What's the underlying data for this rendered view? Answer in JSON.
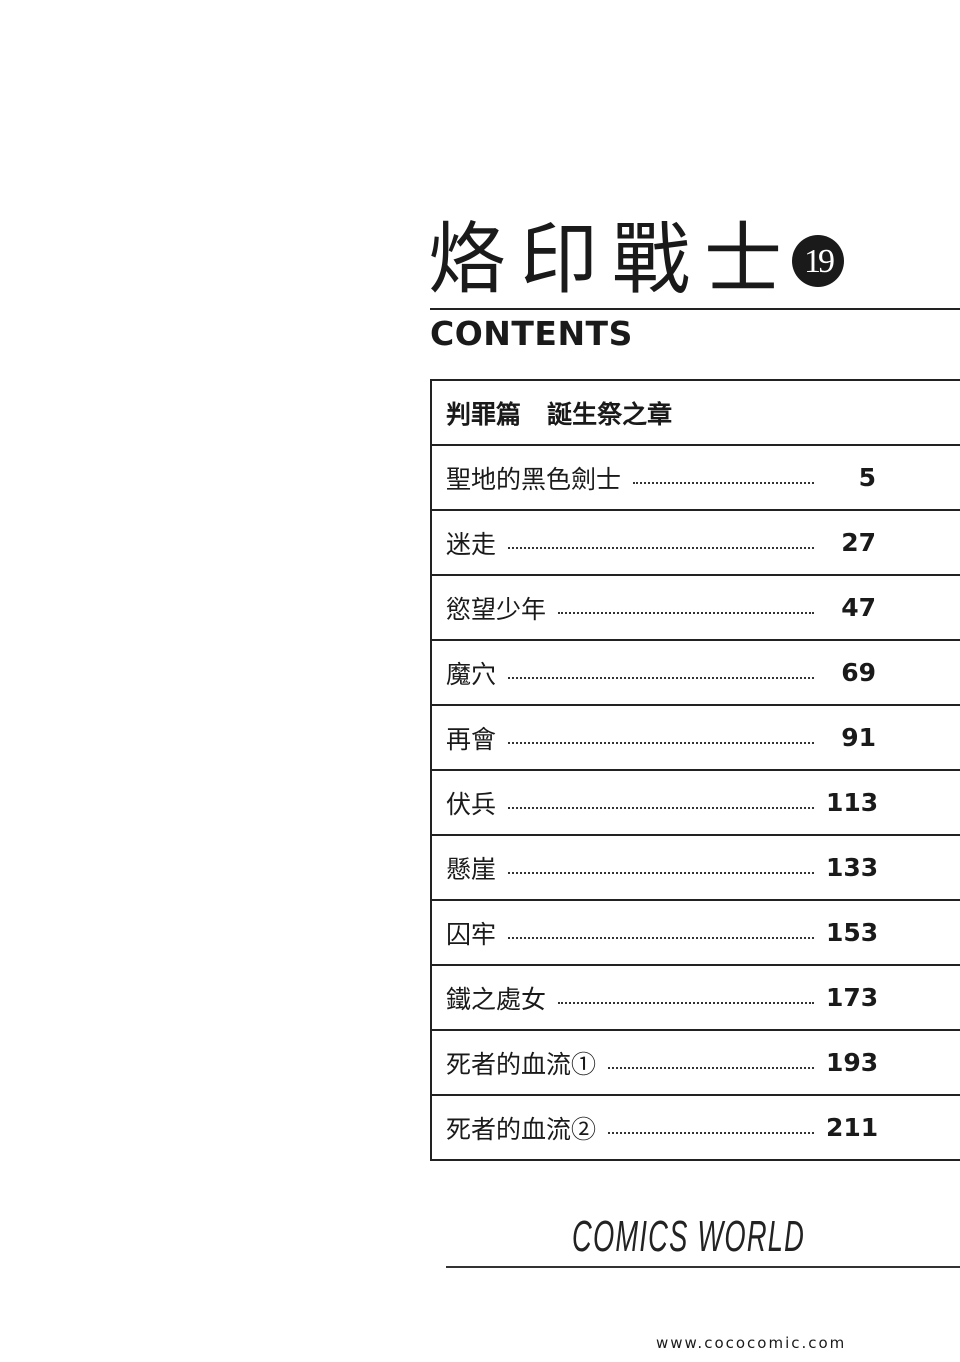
{
  "title": "烙印戰士",
  "volume": "19",
  "contents_heading": "CONTENTS",
  "arc": {
    "name": "判罪篇",
    "chapter_group": "誕生祭之章"
  },
  "chapters": [
    {
      "title": "聖地的黑色劍士",
      "page": "5"
    },
    {
      "title": "迷走",
      "page": "27"
    },
    {
      "title": "慾望少年",
      "page": "47"
    },
    {
      "title": "魔穴",
      "page": "69"
    },
    {
      "title": "再會",
      "page": "91"
    },
    {
      "title": "伏兵",
      "page": "113"
    },
    {
      "title": "懸崖",
      "page": "133"
    },
    {
      "title": "囚牢",
      "page": "153"
    },
    {
      "title": "鐵之處女",
      "page": "173"
    },
    {
      "title": "死者的血流①",
      "page": "193"
    },
    {
      "title": "死者的血流②",
      "page": "211"
    }
  ],
  "publisher": "COMICS WORLD",
  "watermark": "www.cococomic.com"
}
